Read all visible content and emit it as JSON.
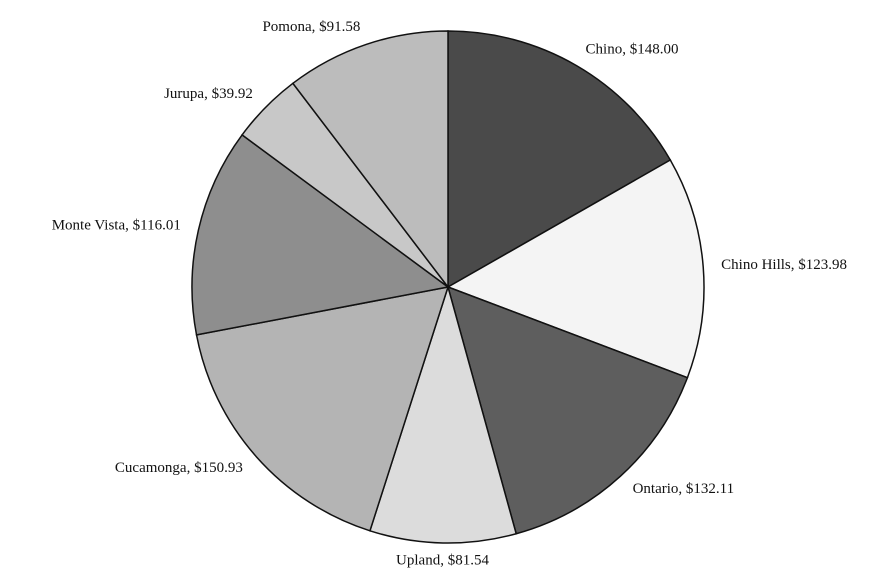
{
  "chart_data": {
    "type": "pie",
    "categories": [
      "Chino",
      "Chino Hills",
      "Ontario",
      "Upland",
      "Cucamonga",
      "Monte Vista",
      "Jurupa",
      "Pomona"
    ],
    "values": [
      148.0,
      123.98,
      132.11,
      81.54,
      150.93,
      116.01,
      39.92,
      91.58
    ],
    "value_labels": [
      "Chino, $148.00",
      "Chino Hills, $123.98",
      "Ontario, $132.11",
      "Upland, $81.54",
      "Cucamonga, $150.93",
      "Monte Vista, $116.01",
      "Jurupa, $39.92",
      "Pomona, $91.58"
    ],
    "colors": [
      "#4a4a4a",
      "#f4f4f4",
      "#5e5e5e",
      "#dcdcdc",
      "#b4b4b4",
      "#8e8e8e",
      "#c8c8c8",
      "#bcbcbc"
    ]
  }
}
